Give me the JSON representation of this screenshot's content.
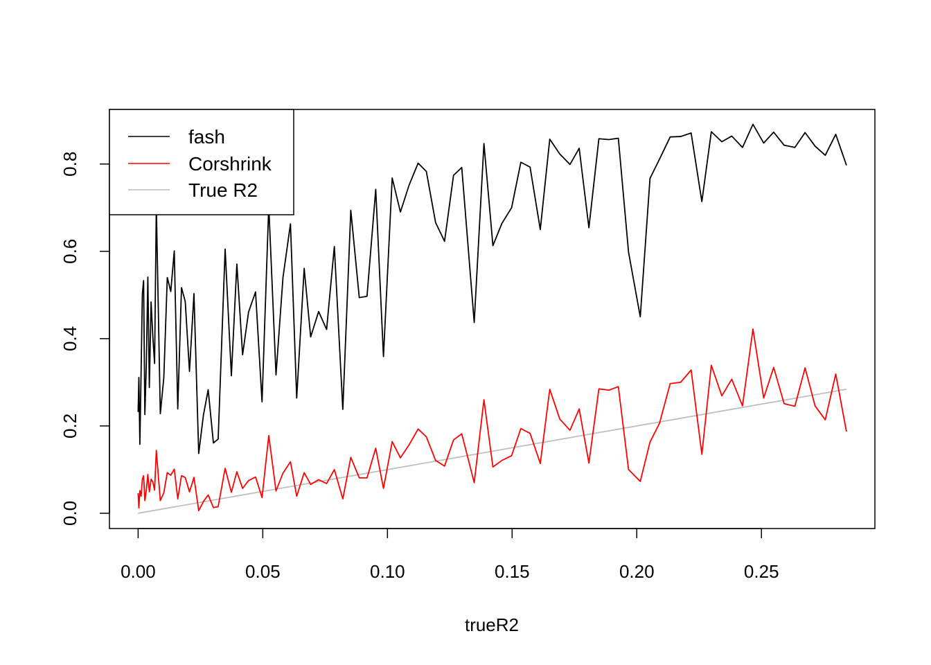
{
  "chart_data": {
    "type": "line",
    "title": "",
    "xlabel": "trueR2",
    "ylabel": "",
    "xlim": [
      -0.0115,
      0.2955
    ],
    "ylim": [
      -0.035,
      0.925
    ],
    "x_ticks": [
      0.0,
      0.05,
      0.1,
      0.15,
      0.2,
      0.25
    ],
    "x_tick_labels": [
      "0.00",
      "0.05",
      "0.10",
      "0.15",
      "0.20",
      "0.25"
    ],
    "y_ticks": [
      0.0,
      0.2,
      0.4,
      0.6,
      0.8
    ],
    "y_tick_labels": [
      "0.0",
      "0.2",
      "0.4",
      "0.6",
      "0.8"
    ],
    "grid": false,
    "legend_position": "top-left",
    "series": [
      {
        "name": "fash",
        "color": "#000000",
        "points": [
          [
            0.0,
            0.232
          ],
          [
            0.0003,
            0.311
          ],
          [
            0.0007,
            0.158
          ],
          [
            0.0012,
            0.325
          ],
          [
            0.0017,
            0.502
          ],
          [
            0.0022,
            0.533
          ],
          [
            0.0027,
            0.226
          ],
          [
            0.0033,
            0.343
          ],
          [
            0.0039,
            0.541
          ],
          [
            0.0045,
            0.288
          ],
          [
            0.0052,
            0.484
          ],
          [
            0.0059,
            0.404
          ],
          [
            0.0066,
            0.343
          ],
          [
            0.0073,
            0.705
          ],
          [
            0.0089,
            0.228
          ],
          [
            0.0103,
            0.31
          ],
          [
            0.0117,
            0.54
          ],
          [
            0.0131,
            0.508
          ],
          [
            0.0145,
            0.601
          ],
          [
            0.0159,
            0.239
          ],
          [
            0.0174,
            0.517
          ],
          [
            0.0189,
            0.485
          ],
          [
            0.0206,
            0.325
          ],
          [
            0.0224,
            0.503
          ],
          [
            0.0243,
            0.137
          ],
          [
            0.0262,
            0.225
          ],
          [
            0.0281,
            0.283
          ],
          [
            0.0302,
            0.161
          ],
          [
            0.0321,
            0.17
          ],
          [
            0.0349,
            0.605
          ],
          [
            0.0374,
            0.315
          ],
          [
            0.0396,
            0.571
          ],
          [
            0.0419,
            0.363
          ],
          [
            0.0443,
            0.461
          ],
          [
            0.0471,
            0.507
          ],
          [
            0.0497,
            0.255
          ],
          [
            0.0524,
            0.705
          ],
          [
            0.0553,
            0.317
          ],
          [
            0.0581,
            0.54
          ],
          [
            0.0611,
            0.663
          ],
          [
            0.0636,
            0.264
          ],
          [
            0.0666,
            0.561
          ],
          [
            0.0692,
            0.404
          ],
          [
            0.0724,
            0.462
          ],
          [
            0.0756,
            0.421
          ],
          [
            0.0787,
            0.611
          ],
          [
            0.0821,
            0.238
          ],
          [
            0.0853,
            0.694
          ],
          [
            0.0887,
            0.494
          ],
          [
            0.0918,
            0.497
          ],
          [
            0.0953,
            0.742
          ],
          [
            0.0984,
            0.359
          ],
          [
            0.1019,
            0.768
          ],
          [
            0.1052,
            0.69
          ],
          [
            0.1087,
            0.752
          ],
          [
            0.1123,
            0.802
          ],
          [
            0.1156,
            0.783
          ],
          [
            0.1193,
            0.666
          ],
          [
            0.1229,
            0.623
          ],
          [
            0.1265,
            0.774
          ],
          [
            0.1298,
            0.792
          ],
          [
            0.1348,
            0.437
          ],
          [
            0.1387,
            0.847
          ],
          [
            0.1423,
            0.613
          ],
          [
            0.1459,
            0.664
          ],
          [
            0.1498,
            0.7
          ],
          [
            0.1535,
            0.804
          ],
          [
            0.1572,
            0.793
          ],
          [
            0.1613,
            0.65
          ],
          [
            0.1651,
            0.857
          ],
          [
            0.1691,
            0.823
          ],
          [
            0.1732,
            0.799
          ],
          [
            0.1769,
            0.836
          ],
          [
            0.1808,
            0.654
          ],
          [
            0.1848,
            0.858
          ],
          [
            0.1888,
            0.856
          ],
          [
            0.1926,
            0.859
          ],
          [
            0.1967,
            0.598
          ],
          [
            0.2014,
            0.45
          ],
          [
            0.2053,
            0.767
          ],
          [
            0.2091,
            0.811
          ],
          [
            0.2134,
            0.862
          ],
          [
            0.2176,
            0.863
          ],
          [
            0.2218,
            0.871
          ],
          [
            0.2261,
            0.714
          ],
          [
            0.2299,
            0.874
          ],
          [
            0.2341,
            0.851
          ],
          [
            0.2381,
            0.864
          ],
          [
            0.2424,
            0.838
          ],
          [
            0.2466,
            0.891
          ],
          [
            0.2509,
            0.848
          ],
          [
            0.2549,
            0.873
          ],
          [
            0.2591,
            0.843
          ],
          [
            0.2634,
            0.838
          ],
          [
            0.2675,
            0.872
          ],
          [
            0.2715,
            0.841
          ],
          [
            0.2756,
            0.82
          ],
          [
            0.2798,
            0.868
          ],
          [
            0.2841,
            0.797
          ]
        ]
      },
      {
        "name": "Corshrink",
        "color": "#ff0000",
        "points": [
          [
            0.0,
            0.046
          ],
          [
            0.0003,
            0.012
          ],
          [
            0.0007,
            0.052
          ],
          [
            0.0012,
            0.039
          ],
          [
            0.0017,
            0.078
          ],
          [
            0.0022,
            0.086
          ],
          [
            0.0027,
            0.029
          ],
          [
            0.0033,
            0.054
          ],
          [
            0.0039,
            0.089
          ],
          [
            0.0045,
            0.049
          ],
          [
            0.0052,
            0.078
          ],
          [
            0.0059,
            0.072
          ],
          [
            0.0066,
            0.053
          ],
          [
            0.0073,
            0.144
          ],
          [
            0.0089,
            0.029
          ],
          [
            0.0103,
            0.047
          ],
          [
            0.0117,
            0.093
          ],
          [
            0.0131,
            0.087
          ],
          [
            0.0145,
            0.101
          ],
          [
            0.0159,
            0.033
          ],
          [
            0.0174,
            0.086
          ],
          [
            0.0189,
            0.082
          ],
          [
            0.0206,
            0.049
          ],
          [
            0.0224,
            0.082
          ],
          [
            0.0243,
            0.006
          ],
          [
            0.0262,
            0.027
          ],
          [
            0.0281,
            0.042
          ],
          [
            0.0302,
            0.013
          ],
          [
            0.0321,
            0.015
          ],
          [
            0.0349,
            0.103
          ],
          [
            0.0374,
            0.048
          ],
          [
            0.0396,
            0.095
          ],
          [
            0.0419,
            0.057
          ],
          [
            0.0443,
            0.075
          ],
          [
            0.0471,
            0.083
          ],
          [
            0.0497,
            0.036
          ],
          [
            0.0524,
            0.178
          ],
          [
            0.0553,
            0.051
          ],
          [
            0.0581,
            0.092
          ],
          [
            0.0611,
            0.118
          ],
          [
            0.0636,
            0.039
          ],
          [
            0.0666,
            0.093
          ],
          [
            0.0692,
            0.066
          ],
          [
            0.0724,
            0.077
          ],
          [
            0.0756,
            0.068
          ],
          [
            0.0787,
            0.1
          ],
          [
            0.0821,
            0.033
          ],
          [
            0.0853,
            0.128
          ],
          [
            0.0887,
            0.081
          ],
          [
            0.0918,
            0.081
          ],
          [
            0.0953,
            0.149
          ],
          [
            0.0984,
            0.057
          ],
          [
            0.1019,
            0.164
          ],
          [
            0.1052,
            0.127
          ],
          [
            0.1087,
            0.157
          ],
          [
            0.1123,
            0.193
          ],
          [
            0.1156,
            0.175
          ],
          [
            0.1193,
            0.121
          ],
          [
            0.1229,
            0.108
          ],
          [
            0.1265,
            0.168
          ],
          [
            0.1298,
            0.182
          ],
          [
            0.1348,
            0.07
          ],
          [
            0.1387,
            0.26
          ],
          [
            0.1423,
            0.106
          ],
          [
            0.1459,
            0.121
          ],
          [
            0.1498,
            0.132
          ],
          [
            0.1535,
            0.194
          ],
          [
            0.1572,
            0.183
          ],
          [
            0.1613,
            0.114
          ],
          [
            0.1651,
            0.284
          ],
          [
            0.1691,
            0.216
          ],
          [
            0.1732,
            0.19
          ],
          [
            0.1769,
            0.239
          ],
          [
            0.1808,
            0.115
          ],
          [
            0.1848,
            0.285
          ],
          [
            0.1888,
            0.282
          ],
          [
            0.1926,
            0.29
          ],
          [
            0.1967,
            0.1
          ],
          [
            0.2014,
            0.073
          ],
          [
            0.2053,
            0.163
          ],
          [
            0.2091,
            0.206
          ],
          [
            0.2134,
            0.297
          ],
          [
            0.2176,
            0.3
          ],
          [
            0.2218,
            0.328
          ],
          [
            0.2261,
            0.135
          ],
          [
            0.2299,
            0.339
          ],
          [
            0.2341,
            0.269
          ],
          [
            0.2381,
            0.307
          ],
          [
            0.2424,
            0.246
          ],
          [
            0.2466,
            0.422
          ],
          [
            0.2509,
            0.264
          ],
          [
            0.2549,
            0.334
          ],
          [
            0.2591,
            0.251
          ],
          [
            0.2634,
            0.245
          ],
          [
            0.2675,
            0.333
          ],
          [
            0.2715,
            0.246
          ],
          [
            0.2756,
            0.214
          ],
          [
            0.2798,
            0.319
          ],
          [
            0.2841,
            0.187
          ]
        ]
      },
      {
        "name": "True R2",
        "color": "#bebebe",
        "points": [
          [
            0.0,
            0.0
          ],
          [
            0.2841,
            0.2841
          ]
        ]
      }
    ]
  }
}
